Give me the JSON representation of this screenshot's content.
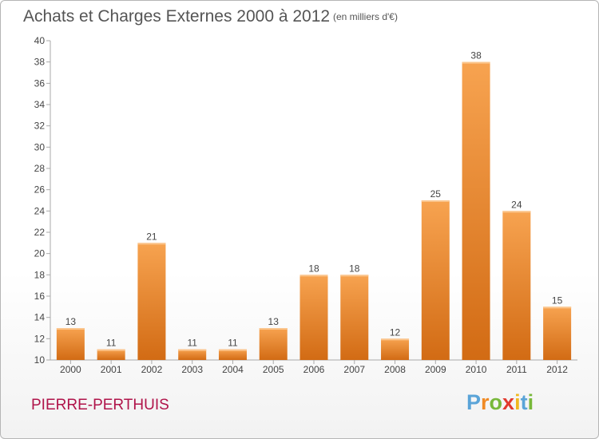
{
  "chart_data": {
    "type": "bar",
    "title": "Achats et Charges Externes 2000 à 2012",
    "subtitle": "(en milliers d'€)",
    "categories": [
      "2000",
      "2001",
      "2002",
      "2003",
      "2004",
      "2005",
      "2006",
      "2007",
      "2008",
      "2009",
      "2010",
      "2011",
      "2012"
    ],
    "values": [
      13,
      11,
      21,
      11,
      11,
      13,
      18,
      18,
      12,
      25,
      38,
      24,
      15
    ],
    "ylim": [
      10,
      40
    ],
    "yticks": [
      10,
      12,
      14,
      16,
      18,
      20,
      22,
      24,
      26,
      28,
      30,
      32,
      34,
      36,
      38,
      40
    ],
    "grid": false,
    "bar_color_top": "#f7a350",
    "bar_color_bottom": "#d26b14"
  },
  "footer": {
    "commune": "PIERRE-PERTHUIS",
    "logo": {
      "name": "proxiti-logo",
      "letters": [
        "P",
        "r",
        "o",
        "x",
        "i",
        "t",
        "i"
      ]
    }
  }
}
